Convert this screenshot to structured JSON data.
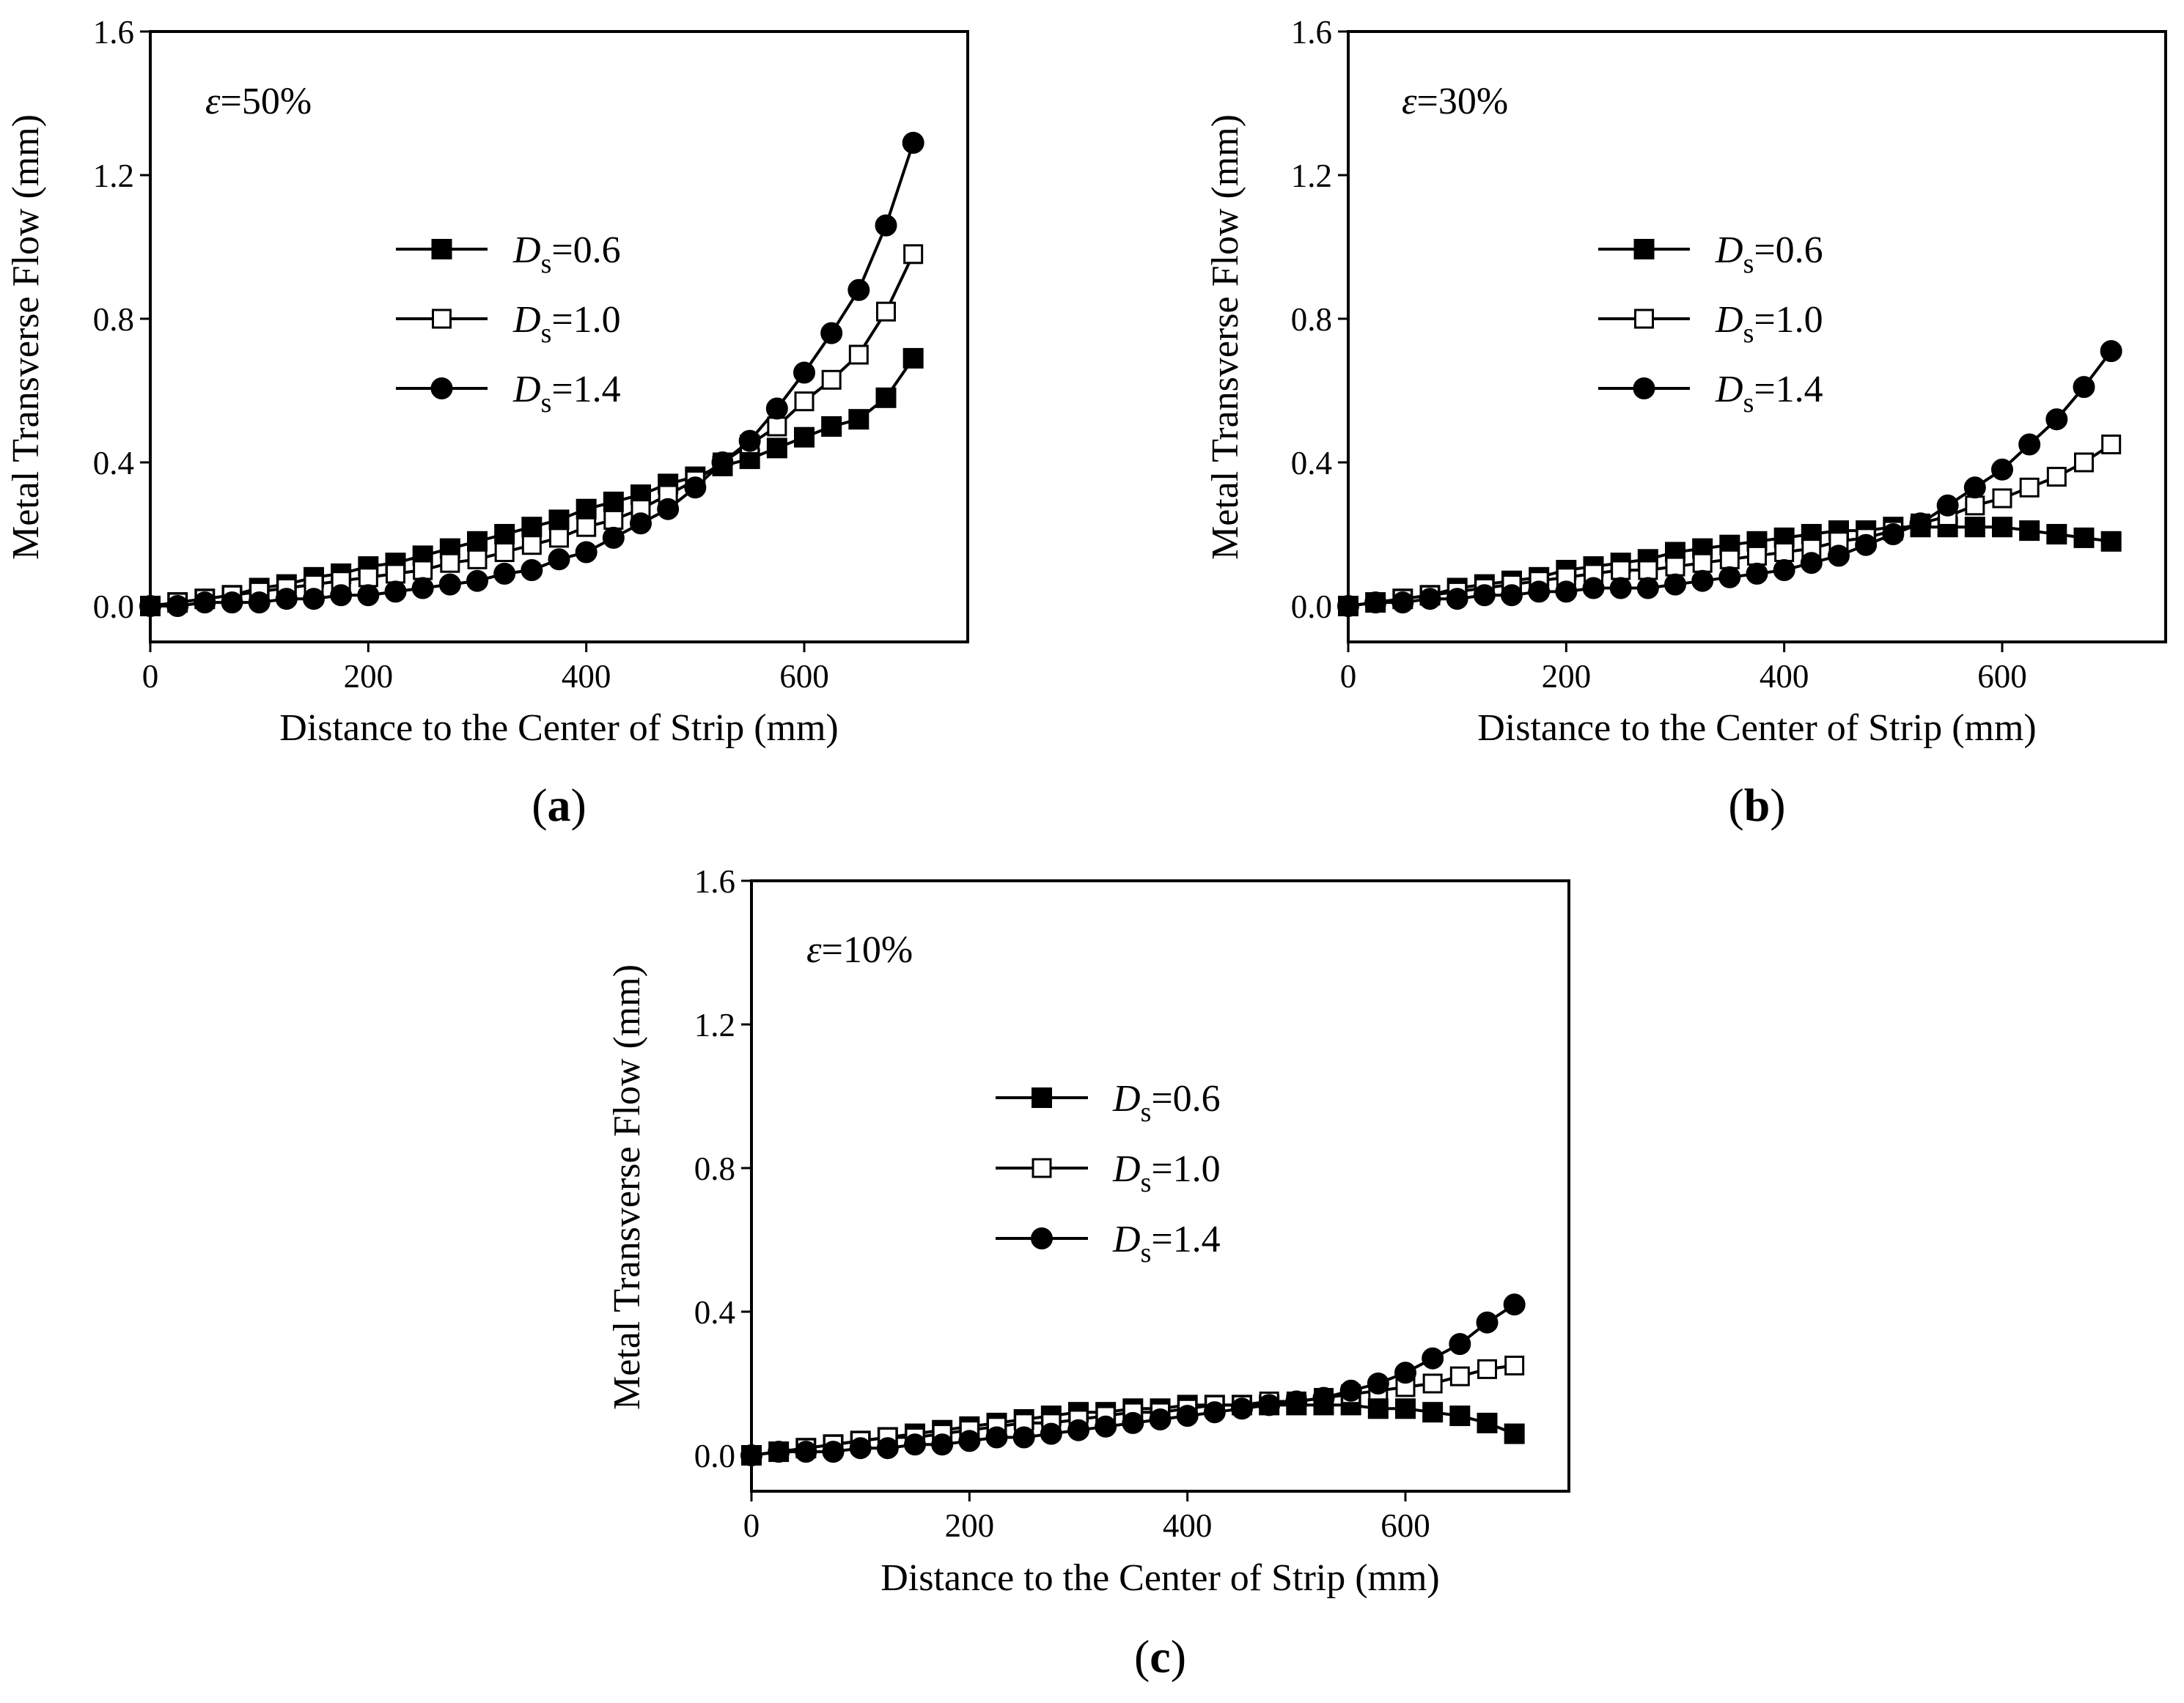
{
  "chart_data": [
    {
      "type": "line",
      "panel_label": "a",
      "annotation": {
        "symbol": "ε",
        "text": "=50%"
      },
      "xlabel": "Distance to the Center of Strip (mm)",
      "ylabel": "Metal Transverse Flow (mm)",
      "xlim": [
        0,
        750
      ],
      "ylim": [
        -0.1,
        1.6
      ],
      "xticks": [
        "0",
        "200",
        "400",
        "600"
      ],
      "yticks": [
        "0.0",
        "0.4",
        "0.8",
        "1.2",
        "1.6"
      ],
      "legend_position": "upper-left",
      "x": [
        0,
        25,
        50,
        75,
        100,
        125,
        150,
        175,
        200,
        225,
        250,
        275,
        300,
        325,
        350,
        375,
        400,
        425,
        450,
        475,
        500,
        525,
        550,
        575,
        600,
        625,
        650,
        675,
        700
      ],
      "series": [
        {
          "name": "0.6",
          "marker": "filled-square",
          "values": [
            0.0,
            0.01,
            0.02,
            0.03,
            0.05,
            0.06,
            0.08,
            0.09,
            0.11,
            0.12,
            0.14,
            0.16,
            0.18,
            0.2,
            0.22,
            0.24,
            0.27,
            0.29,
            0.31,
            0.34,
            0.36,
            0.39,
            0.41,
            0.44,
            0.47,
            0.5,
            0.52,
            0.58,
            0.69
          ]
        },
        {
          "name": "1.0",
          "marker": "open-square",
          "values": [
            0.0,
            0.01,
            0.02,
            0.03,
            0.04,
            0.05,
            0.06,
            0.07,
            0.08,
            0.09,
            0.1,
            0.12,
            0.13,
            0.15,
            0.17,
            0.19,
            0.22,
            0.24,
            0.27,
            0.31,
            0.35,
            0.4,
            0.45,
            0.5,
            0.57,
            0.63,
            0.7,
            0.82,
            0.98
          ]
        },
        {
          "name": "1.4",
          "marker": "filled-circle",
          "values": [
            0.0,
            0.0,
            0.01,
            0.01,
            0.01,
            0.02,
            0.02,
            0.03,
            0.03,
            0.04,
            0.05,
            0.06,
            0.07,
            0.09,
            0.1,
            0.13,
            0.15,
            0.19,
            0.23,
            0.27,
            0.33,
            0.4,
            0.46,
            0.55,
            0.65,
            0.76,
            0.88,
            1.06,
            1.29
          ]
        }
      ]
    },
    {
      "type": "line",
      "panel_label": "b",
      "annotation": {
        "symbol": "ε",
        "text": "=30%"
      },
      "xlabel": "Distance to the Center of Strip (mm)",
      "ylabel": "Metal Transverse Flow (mm)",
      "xlim": [
        0,
        750
      ],
      "ylim": [
        -0.1,
        1.6
      ],
      "xticks": [
        "0",
        "200",
        "400",
        "600"
      ],
      "yticks": [
        "0.0",
        "0.4",
        "0.8",
        "1.2",
        "1.6"
      ],
      "legend_position": "upper-left",
      "x": [
        0,
        25,
        50,
        75,
        100,
        125,
        150,
        175,
        200,
        225,
        250,
        275,
        300,
        325,
        350,
        375,
        400,
        425,
        450,
        475,
        500,
        525,
        550,
        575,
        600,
        625,
        650,
        675,
        700
      ],
      "series": [
        {
          "name": "0.6",
          "marker": "filled-square",
          "values": [
            0.0,
            0.01,
            0.02,
            0.03,
            0.05,
            0.06,
            0.07,
            0.08,
            0.1,
            0.11,
            0.12,
            0.13,
            0.15,
            0.16,
            0.17,
            0.18,
            0.19,
            0.2,
            0.21,
            0.21,
            0.22,
            0.22,
            0.22,
            0.22,
            0.22,
            0.21,
            0.2,
            0.19,
            0.18
          ]
        },
        {
          "name": "1.0",
          "marker": "open-square",
          "values": [
            0.0,
            0.01,
            0.02,
            0.03,
            0.04,
            0.05,
            0.06,
            0.07,
            0.08,
            0.09,
            0.1,
            0.1,
            0.11,
            0.12,
            0.13,
            0.14,
            0.15,
            0.16,
            0.18,
            0.19,
            0.21,
            0.23,
            0.25,
            0.28,
            0.3,
            0.33,
            0.36,
            0.4,
            0.45
          ]
        },
        {
          "name": "1.4",
          "marker": "filled-circle",
          "values": [
            0.0,
            0.01,
            0.01,
            0.02,
            0.02,
            0.03,
            0.03,
            0.04,
            0.04,
            0.05,
            0.05,
            0.05,
            0.06,
            0.07,
            0.08,
            0.09,
            0.1,
            0.12,
            0.14,
            0.17,
            0.2,
            0.23,
            0.28,
            0.33,
            0.38,
            0.45,
            0.52,
            0.61,
            0.71
          ]
        }
      ]
    },
    {
      "type": "line",
      "panel_label": "c",
      "annotation": {
        "symbol": "ε",
        "text": "=10%"
      },
      "xlabel": "Distance to the Center of Strip (mm)",
      "ylabel": "Metal Transverse Flow (mm)",
      "xlim": [
        0,
        750
      ],
      "ylim": [
        -0.1,
        1.6
      ],
      "xticks": [
        "0",
        "200",
        "400",
        "600"
      ],
      "yticks": [
        "0.0",
        "0.4",
        "0.8",
        "1.2",
        "1.6"
      ],
      "legend_position": "center-left",
      "x": [
        0,
        25,
        50,
        75,
        100,
        125,
        150,
        175,
        200,
        225,
        250,
        275,
        300,
        325,
        350,
        375,
        400,
        425,
        450,
        475,
        500,
        525,
        550,
        575,
        600,
        625,
        650,
        675,
        700
      ],
      "series": [
        {
          "name": "0.6",
          "marker": "filled-square",
          "values": [
            0.0,
            0.01,
            0.02,
            0.03,
            0.04,
            0.05,
            0.06,
            0.07,
            0.08,
            0.09,
            0.1,
            0.11,
            0.12,
            0.12,
            0.13,
            0.13,
            0.14,
            0.14,
            0.14,
            0.14,
            0.14,
            0.14,
            0.14,
            0.13,
            0.13,
            0.12,
            0.11,
            0.09,
            0.06
          ]
        },
        {
          "name": "1.0",
          "marker": "open-square",
          "values": [
            0.0,
            0.01,
            0.02,
            0.03,
            0.04,
            0.05,
            0.05,
            0.06,
            0.07,
            0.08,
            0.09,
            0.09,
            0.1,
            0.11,
            0.12,
            0.12,
            0.13,
            0.14,
            0.14,
            0.15,
            0.15,
            0.16,
            0.17,
            0.18,
            0.19,
            0.2,
            0.22,
            0.24,
            0.25
          ]
        },
        {
          "name": "1.4",
          "marker": "filled-circle",
          "values": [
            0.0,
            0.01,
            0.01,
            0.01,
            0.02,
            0.02,
            0.03,
            0.03,
            0.04,
            0.05,
            0.05,
            0.06,
            0.07,
            0.08,
            0.09,
            0.1,
            0.11,
            0.12,
            0.13,
            0.14,
            0.15,
            0.16,
            0.18,
            0.2,
            0.23,
            0.27,
            0.31,
            0.37,
            0.42
          ]
        }
      ]
    }
  ],
  "legend": {
    "variable_symbol": "D",
    "variable_subscript": "s"
  }
}
